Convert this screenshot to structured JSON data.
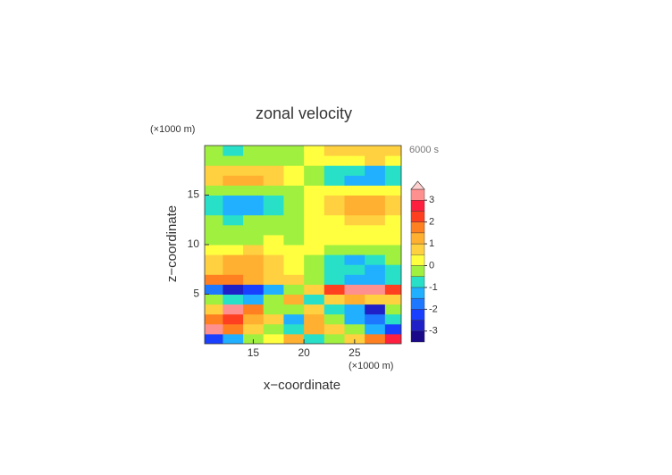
{
  "chart_data": {
    "type": "contour",
    "title": "zonal velocity",
    "x_unit": "(×1000 m)",
    "y_unit": "(×1000 m)",
    "time_label": "6000 s",
    "xlabel": "x−coordinate",
    "ylabel": "z−coordinate",
    "xlim": [
      10.2,
      29.6
    ],
    "ylim": [
      0,
      20
    ],
    "xticks": [
      15,
      20,
      25
    ],
    "yticks": [
      5,
      10,
      15
    ],
    "x": [
      11,
      13,
      15,
      17,
      19,
      21,
      23,
      25,
      27,
      29
    ],
    "y": [
      0.5,
      1.5,
      2.5,
      3.5,
      4.5,
      5.5,
      6.5,
      7.5,
      8.5,
      9.5,
      10.5,
      11.5,
      12.5,
      13.5,
      14.5,
      15.5,
      16.5,
      17.5,
      18.5,
      19.5
    ],
    "z": [
      [
        -2.5,
        -1.5,
        -0.5,
        0.3,
        1,
        -1,
        -0.3,
        0.5,
        1.5,
        2.5
      ],
      [
        3,
        1.5,
        0.5,
        -0.5,
        -1,
        1,
        0.5,
        -0.5,
        -1.5,
        -2.5
      ],
      [
        1.5,
        2,
        1,
        0.5,
        -1.5,
        1,
        -0.5,
        -1.5,
        -2,
        -1
      ],
      [
        0.5,
        3,
        1.5,
        -0.5,
        -0.5,
        0.5,
        -1,
        -1.5,
        -3,
        -0.5
      ],
      [
        -0.5,
        -1,
        -1.5,
        -0.5,
        1,
        -1,
        0.5,
        1,
        0.5,
        0.5
      ],
      [
        -2,
        -3,
        -2.5,
        -1.5,
        -0.5,
        0.5,
        2,
        3,
        3,
        2
      ],
      [
        1.5,
        1.5,
        1,
        0.8,
        0.5,
        -0.5,
        -1,
        -1.5,
        -1.5,
        -1
      ],
      [
        0.8,
        1.2,
        1,
        0.6,
        0.2,
        -0.2,
        -0.6,
        -1,
        -1.5,
        -0.8
      ],
      [
        0.5,
        1.2,
        1,
        0.8,
        0.2,
        -0.2,
        -0.8,
        -1.2,
        -1,
        -0.5
      ],
      [
        0.2,
        0.3,
        0.5,
        0.3,
        0.1,
        0.1,
        -0.2,
        -0.3,
        -0.3,
        -0.2
      ],
      [
        -0.2,
        -0.2,
        -0.1,
        0.1,
        -0.2,
        0.2,
        0.1,
        0.2,
        0.2,
        0.2
      ],
      [
        -0.2,
        -0.3,
        -0.3,
        -0.2,
        -0.2,
        0.2,
        0.2,
        0.2,
        0.3,
        0.2
      ],
      [
        -0.5,
        -0.6,
        -0.5,
        -0.4,
        -0.3,
        0.3,
        0.4,
        0.5,
        0.6,
        0.4
      ],
      [
        -1,
        -1.2,
        -1.1,
        -0.8,
        -0.4,
        0.4,
        0.7,
        1,
        1.1,
        0.8
      ],
      [
        -1,
        -1.2,
        -1.1,
        -0.8,
        -0.4,
        0.4,
        0.7,
        1,
        1.1,
        0.8
      ],
      [
        -0.2,
        -0.3,
        -0.2,
        -0.2,
        -0.2,
        0.2,
        0.2,
        0.2,
        0.3,
        0.2
      ],
      [
        0.8,
        1,
        1,
        0.8,
        0.4,
        -0.4,
        -0.8,
        -1.2,
        -1.5,
        -1
      ],
      [
        0.6,
        0.8,
        0.9,
        0.7,
        0.3,
        -0.3,
        -0.7,
        -1,
        -1.2,
        -0.8
      ],
      [
        -0.2,
        -0.3,
        -0.3,
        -0.2,
        -0.1,
        0.2,
        0.3,
        0.4,
        0.5,
        0.4
      ],
      [
        -0.5,
        -0.6,
        -0.5,
        -0.3,
        -0.1,
        0.2,
        0.5,
        0.8,
        0.8,
        0.6
      ]
    ],
    "colorbar": {
      "levels": [
        -3.5,
        -3,
        -2.5,
        -2,
        -1.5,
        -1,
        -0.5,
        0,
        0.5,
        1,
        1.5,
        2,
        2.5,
        3,
        3.5
      ],
      "colors": [
        "#1a0a8a",
        "#2020c8",
        "#1a40ff",
        "#1e78ff",
        "#20b0ff",
        "#28e0c8",
        "#a0f040",
        "#ffff40",
        "#ffd040",
        "#ffb030",
        "#ff8020",
        "#ff4020",
        "#ff2040",
        "#ff9090"
      ],
      "extend_color": "#ffd0d0",
      "ticks": [
        -3,
        -2,
        -1,
        0,
        1,
        2,
        3
      ]
    }
  }
}
